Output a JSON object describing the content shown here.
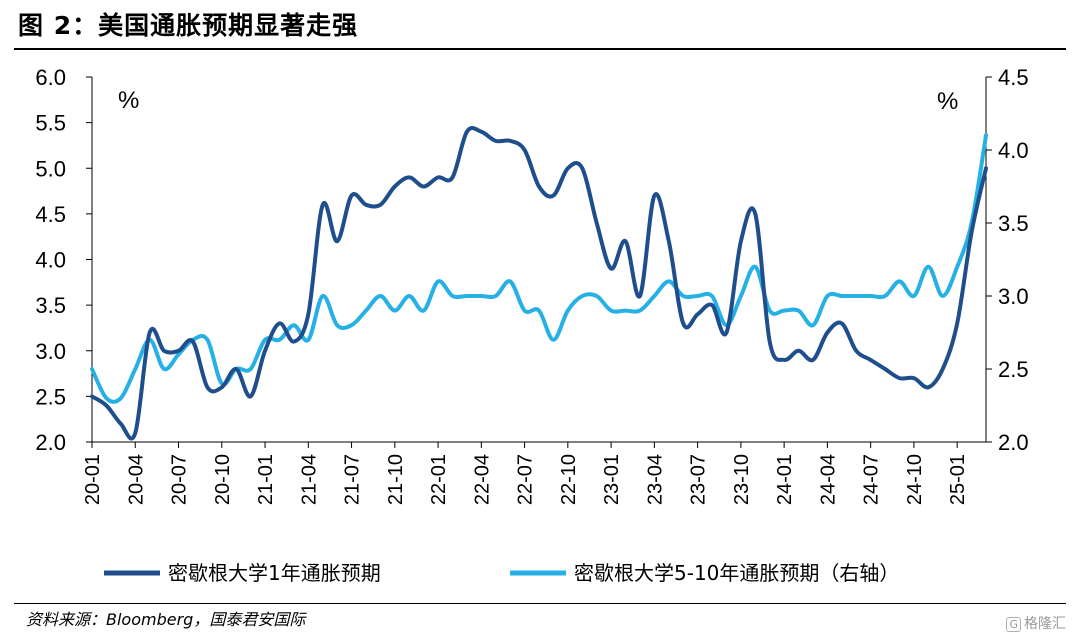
{
  "header": {
    "title": "图 2：美国通胀预期显著走强"
  },
  "footer": {
    "source": "资料来源：Bloomberg，国泰君安国际",
    "watermark_icon": "gelonghui-logo-icon",
    "watermark": "格隆汇"
  },
  "chart_data": {
    "type": "line",
    "title": "",
    "left_unit": "%",
    "right_unit": "%",
    "left_axis": {
      "ylim": [
        2.0,
        6.0
      ],
      "ticks": [
        "2.0",
        "2.5",
        "3.0",
        "3.5",
        "4.0",
        "4.5",
        "5.0",
        "5.5",
        "6.0"
      ]
    },
    "right_axis": {
      "ylim": [
        2.0,
        4.5
      ],
      "ticks": [
        "2.0",
        "2.5",
        "3.0",
        "3.5",
        "4.0",
        "4.5"
      ]
    },
    "x_tick_labels": [
      "20-01",
      "20-04",
      "20-07",
      "20-10",
      "21-01",
      "21-04",
      "21-07",
      "21-10",
      "22-01",
      "22-04",
      "22-07",
      "22-10",
      "23-01",
      "23-04",
      "23-07",
      "23-10",
      "24-01",
      "24-04",
      "24-07",
      "24-10",
      "25-01"
    ],
    "x": [
      "20-01",
      "20-02",
      "20-03",
      "20-04",
      "20-05",
      "20-06",
      "20-07",
      "20-08",
      "20-09",
      "20-10",
      "20-11",
      "20-12",
      "21-01",
      "21-02",
      "21-03",
      "21-04",
      "21-05",
      "21-06",
      "21-07",
      "21-08",
      "21-09",
      "21-10",
      "21-11",
      "21-12",
      "22-01",
      "22-02",
      "22-03",
      "22-04",
      "22-05",
      "22-06",
      "22-07",
      "22-08",
      "22-09",
      "22-10",
      "22-11",
      "22-12",
      "23-01",
      "23-02",
      "23-03",
      "23-04",
      "23-05",
      "23-06",
      "23-07",
      "23-08",
      "23-09",
      "23-10",
      "23-11",
      "23-12",
      "24-01",
      "24-02",
      "24-03",
      "24-04",
      "24-05",
      "24-06",
      "24-07",
      "24-08",
      "24-09",
      "24-10",
      "24-11",
      "24-12",
      "25-01",
      "25-02",
      "25-03"
    ],
    "grid": false,
    "legend_position": "bottom",
    "series": [
      {
        "name": "密歇根大学1年通胀预期",
        "axis": "left",
        "color": "#1f4e8c",
        "values": [
          2.5,
          2.4,
          2.2,
          2.1,
          3.2,
          3.0,
          3.0,
          3.1,
          2.6,
          2.6,
          2.8,
          2.5,
          3.0,
          3.3,
          3.1,
          3.4,
          4.6,
          4.2,
          4.7,
          4.6,
          4.6,
          4.8,
          4.9,
          4.8,
          4.9,
          4.9,
          5.4,
          5.4,
          5.3,
          5.3,
          5.2,
          4.8,
          4.7,
          5.0,
          5.0,
          4.4,
          3.9,
          4.2,
          3.6,
          4.7,
          4.2,
          3.3,
          3.4,
          3.5,
          3.2,
          4.2,
          4.5,
          3.1,
          2.9,
          3.0,
          2.9,
          3.2,
          3.3,
          3.0,
          2.9,
          2.8,
          2.7,
          2.7,
          2.6,
          2.8,
          3.3,
          4.3,
          5.0
        ]
      },
      {
        "name": "密歇根大学5-10年通胀预期（右轴）",
        "axis": "right",
        "color": "#26b0e6",
        "values": [
          2.5,
          2.3,
          2.3,
          2.5,
          2.7,
          2.5,
          2.6,
          2.7,
          2.7,
          2.4,
          2.5,
          2.5,
          2.7,
          2.7,
          2.8,
          2.7,
          3.0,
          2.8,
          2.8,
          2.9,
          3.0,
          2.9,
          3.0,
          2.9,
          3.1,
          3.0,
          3.0,
          3.0,
          3.0,
          3.1,
          2.9,
          2.9,
          2.7,
          2.9,
          3.0,
          3.0,
          2.9,
          2.9,
          2.9,
          3.0,
          3.1,
          3.0,
          3.0,
          3.0,
          2.8,
          3.0,
          3.2,
          2.9,
          2.9,
          2.9,
          2.8,
          3.0,
          3.0,
          3.0,
          3.0,
          3.0,
          3.1,
          3.0,
          3.2,
          3.0,
          3.2,
          3.5,
          4.1
        ]
      }
    ]
  }
}
